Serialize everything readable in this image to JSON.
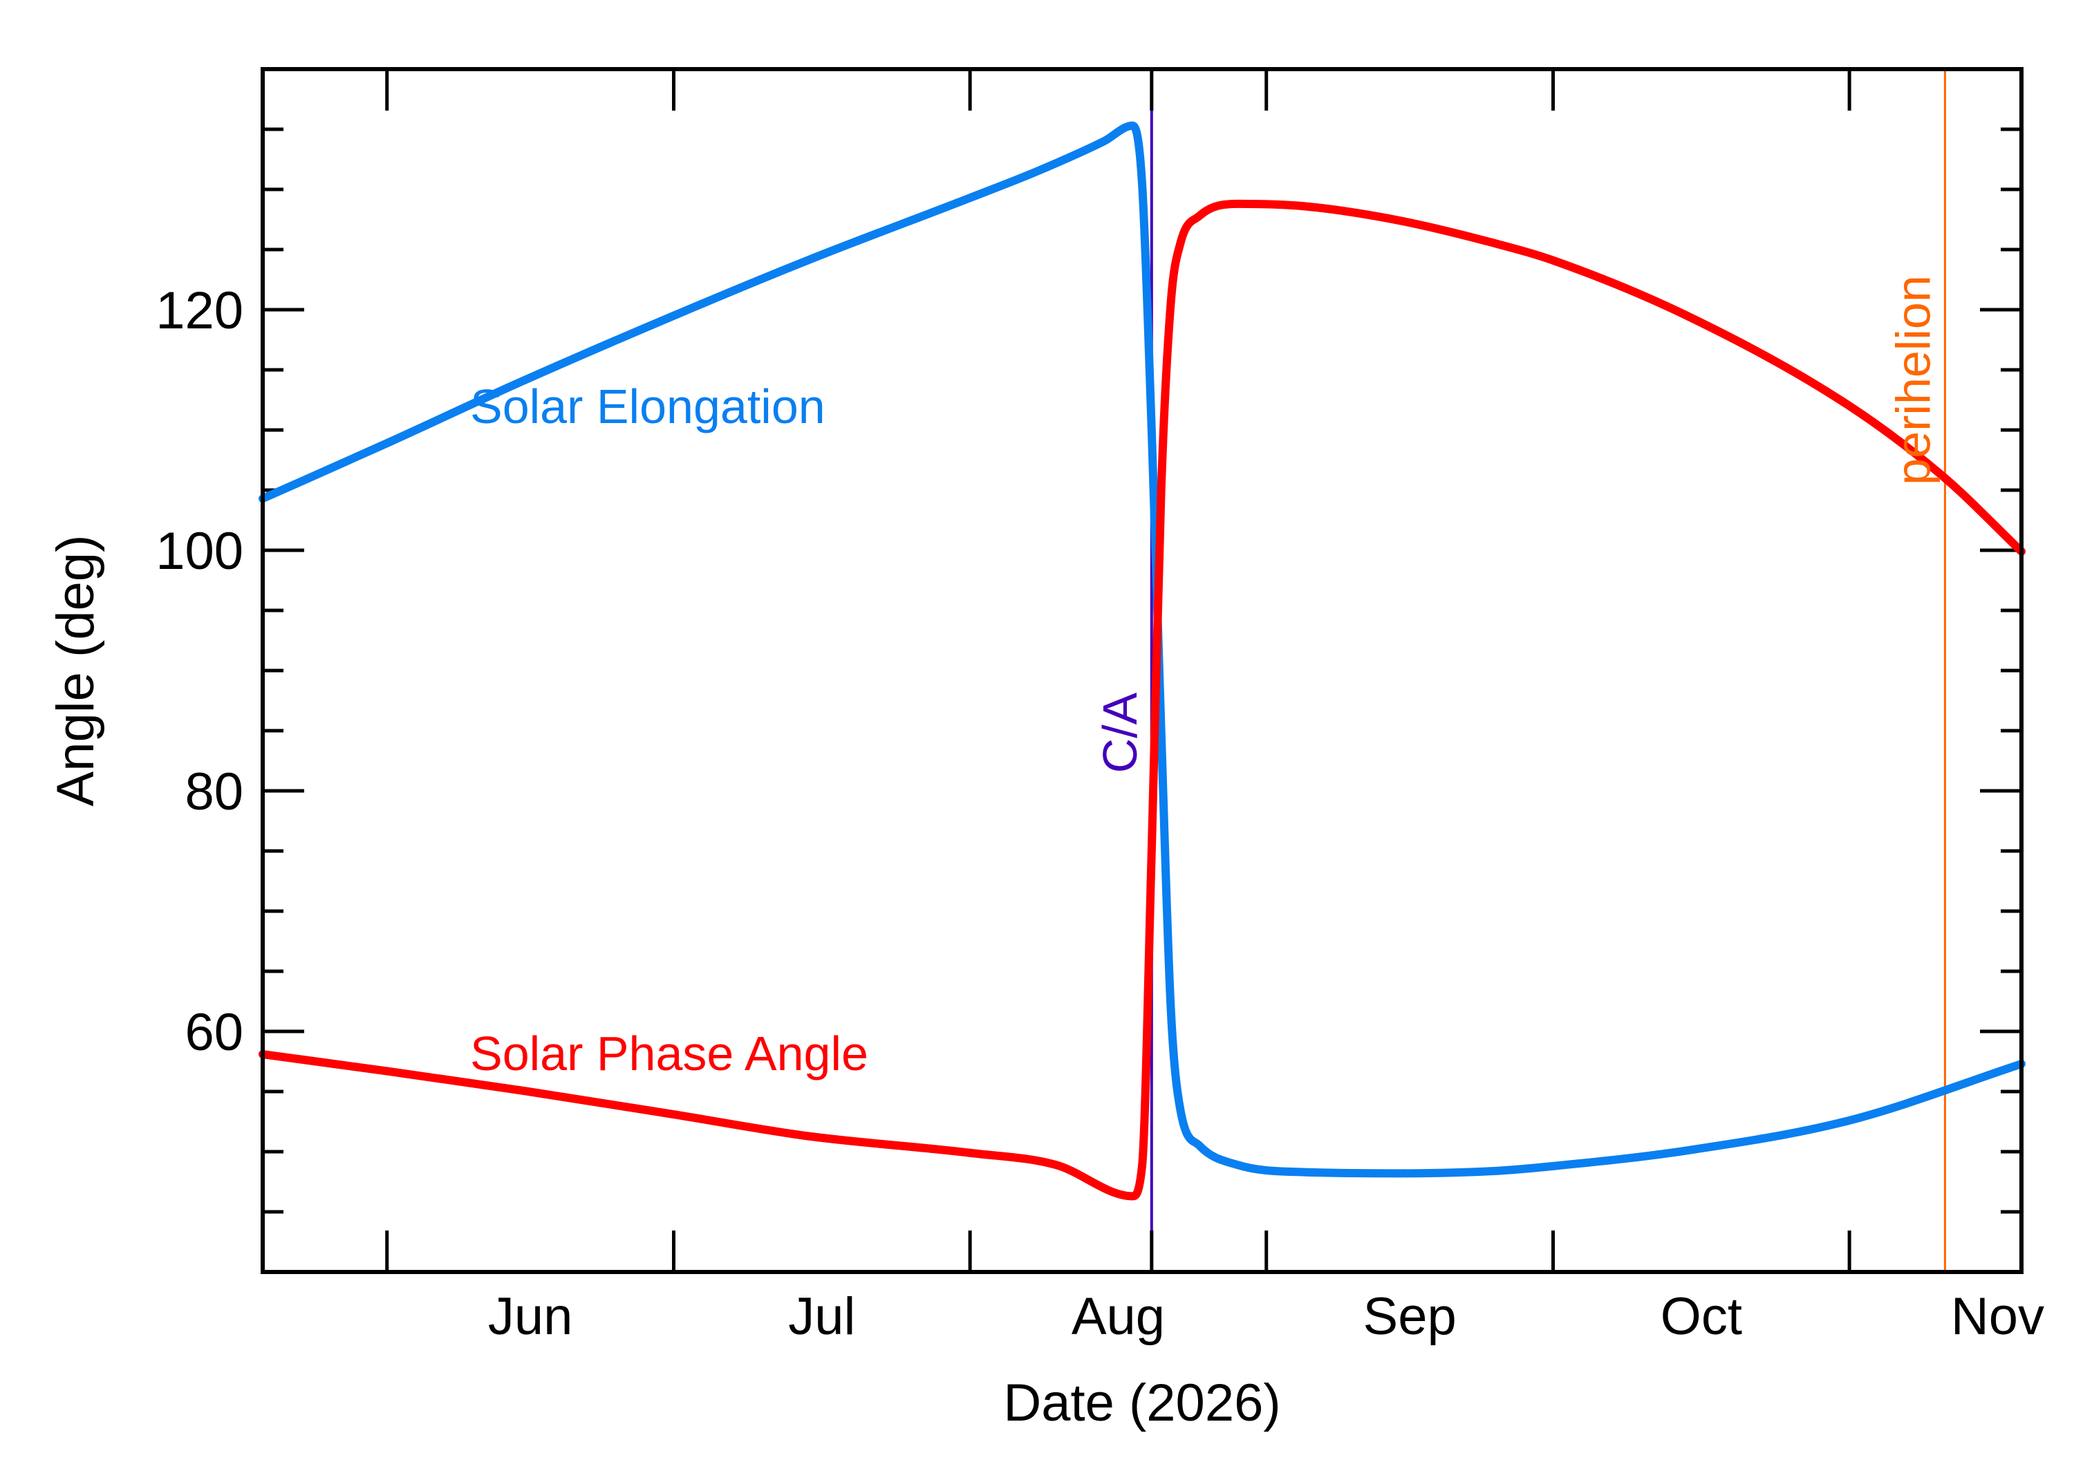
{
  "chart_data": {
    "type": "line",
    "title": "",
    "xlabel": "Date (2026)",
    "ylabel": "Angle (deg)",
    "xlim": [
      "2026-05-19",
      "2026-11-19"
    ],
    "ylim": [
      40,
      140
    ],
    "x_ticks": [
      {
        "date": "2026-06-01",
        "label": "Jun"
      },
      {
        "date": "2026-07-01",
        "label": "Jul"
      },
      {
        "date": "2026-08-01",
        "label": "Aug"
      },
      {
        "date": "2026-09-01",
        "label": "Sep"
      },
      {
        "date": "2026-10-01",
        "label": "Oct"
      },
      {
        "date": "2026-11-01",
        "label": "Nov"
      }
    ],
    "y_ticks": [
      60,
      80,
      100,
      120
    ],
    "y_minor_step": 5,
    "grid": false,
    "series": [
      {
        "name": "Solar Elongation",
        "color": "#0a7ff0",
        "points": [
          [
            "2026-05-19",
            104.3
          ],
          [
            "2026-06-01",
            108.9
          ],
          [
            "2026-06-15",
            114.0
          ],
          [
            "2026-07-01",
            119.5
          ],
          [
            "2026-07-15",
            124.1
          ],
          [
            "2026-08-01",
            129.3
          ],
          [
            "2026-08-08",
            131.5
          ],
          [
            "2026-08-15",
            134.0
          ],
          [
            "2026-08-18",
            135.3
          ],
          [
            "2026-08-19",
            130.5
          ],
          [
            "2026-08-20",
            110.0
          ],
          [
            "2026-08-21",
            85.0
          ],
          [
            "2026-08-22",
            62.0
          ],
          [
            "2026-08-23",
            53.5
          ],
          [
            "2026-08-25",
            50.5
          ],
          [
            "2026-08-29",
            48.9
          ],
          [
            "2026-09-05",
            48.3
          ],
          [
            "2026-09-15",
            48.2
          ],
          [
            "2026-09-25",
            48.4
          ],
          [
            "2026-10-01",
            48.8
          ],
          [
            "2026-10-15",
            50.1
          ],
          [
            "2026-11-01",
            52.6
          ],
          [
            "2026-11-19",
            57.3
          ]
        ]
      },
      {
        "name": "Solar Phase Angle",
        "color": "#ff0000",
        "points": [
          [
            "2026-05-19",
            58.1
          ],
          [
            "2026-06-01",
            56.7
          ],
          [
            "2026-06-15",
            55.1
          ],
          [
            "2026-07-01",
            53.1
          ],
          [
            "2026-07-15",
            51.3
          ],
          [
            "2026-08-01",
            49.9
          ],
          [
            "2026-08-10",
            48.9
          ],
          [
            "2026-08-18",
            46.3
          ],
          [
            "2026-08-19",
            48.8
          ],
          [
            "2026-08-20",
            75.0
          ],
          [
            "2026-08-21",
            105.0
          ],
          [
            "2026-08-22",
            120.5
          ],
          [
            "2026-08-23",
            125.5
          ],
          [
            "2026-08-25",
            127.8
          ],
          [
            "2026-08-29",
            128.8
          ],
          [
            "2026-09-05",
            128.6
          ],
          [
            "2026-09-15",
            127.4
          ],
          [
            "2026-09-25",
            125.5
          ],
          [
            "2026-10-01",
            124.1
          ],
          [
            "2026-10-15",
            119.5
          ],
          [
            "2026-11-01",
            112.0
          ],
          [
            "2026-11-11",
            106.0
          ],
          [
            "2026-11-19",
            99.9
          ]
        ]
      }
    ],
    "annotations": [
      {
        "label": "C/A",
        "date": "2026-08-20",
        "color": "#4400bb"
      },
      {
        "label": "perihelion",
        "date": "2026-11-11",
        "color": "#ff6600"
      }
    ]
  }
}
